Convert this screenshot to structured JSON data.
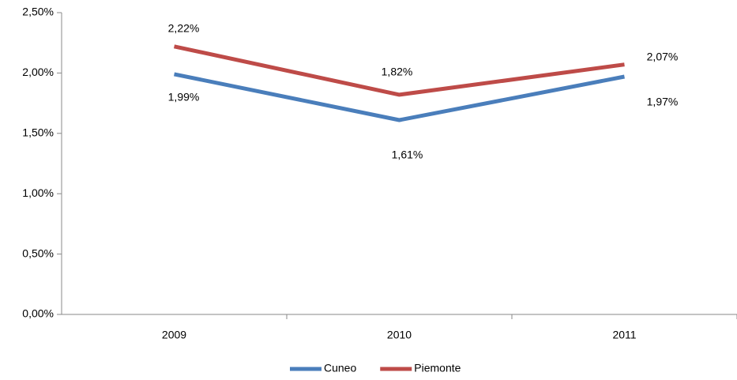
{
  "chart_data": {
    "type": "line",
    "categories": [
      "2009",
      "2010",
      "2011"
    ],
    "series": [
      {
        "name": "Cuneo",
        "color": "#4a7ebb",
        "values": [
          1.99,
          1.61,
          1.97
        ],
        "value_labels": [
          "1,99%",
          "1,61%",
          "1,97%"
        ]
      },
      {
        "name": "Piemonte",
        "color": "#be4b48",
        "values": [
          2.22,
          1.82,
          2.07
        ],
        "value_labels": [
          "2,22%",
          "1,82%",
          "2,07%"
        ]
      }
    ],
    "ylim": [
      0,
      2.5
    ],
    "yticks": [
      {
        "value": 0,
        "label": "0,00%"
      },
      {
        "value": 0.5,
        "label": "0,50%"
      },
      {
        "value": 1,
        "label": "1,00%"
      },
      {
        "value": 1.5,
        "label": "1,50%"
      },
      {
        "value": 2,
        "label": "2,00%"
      },
      {
        "value": 2.5,
        "label": "2,50%"
      }
    ],
    "grid": false,
    "legend": "bottom"
  }
}
